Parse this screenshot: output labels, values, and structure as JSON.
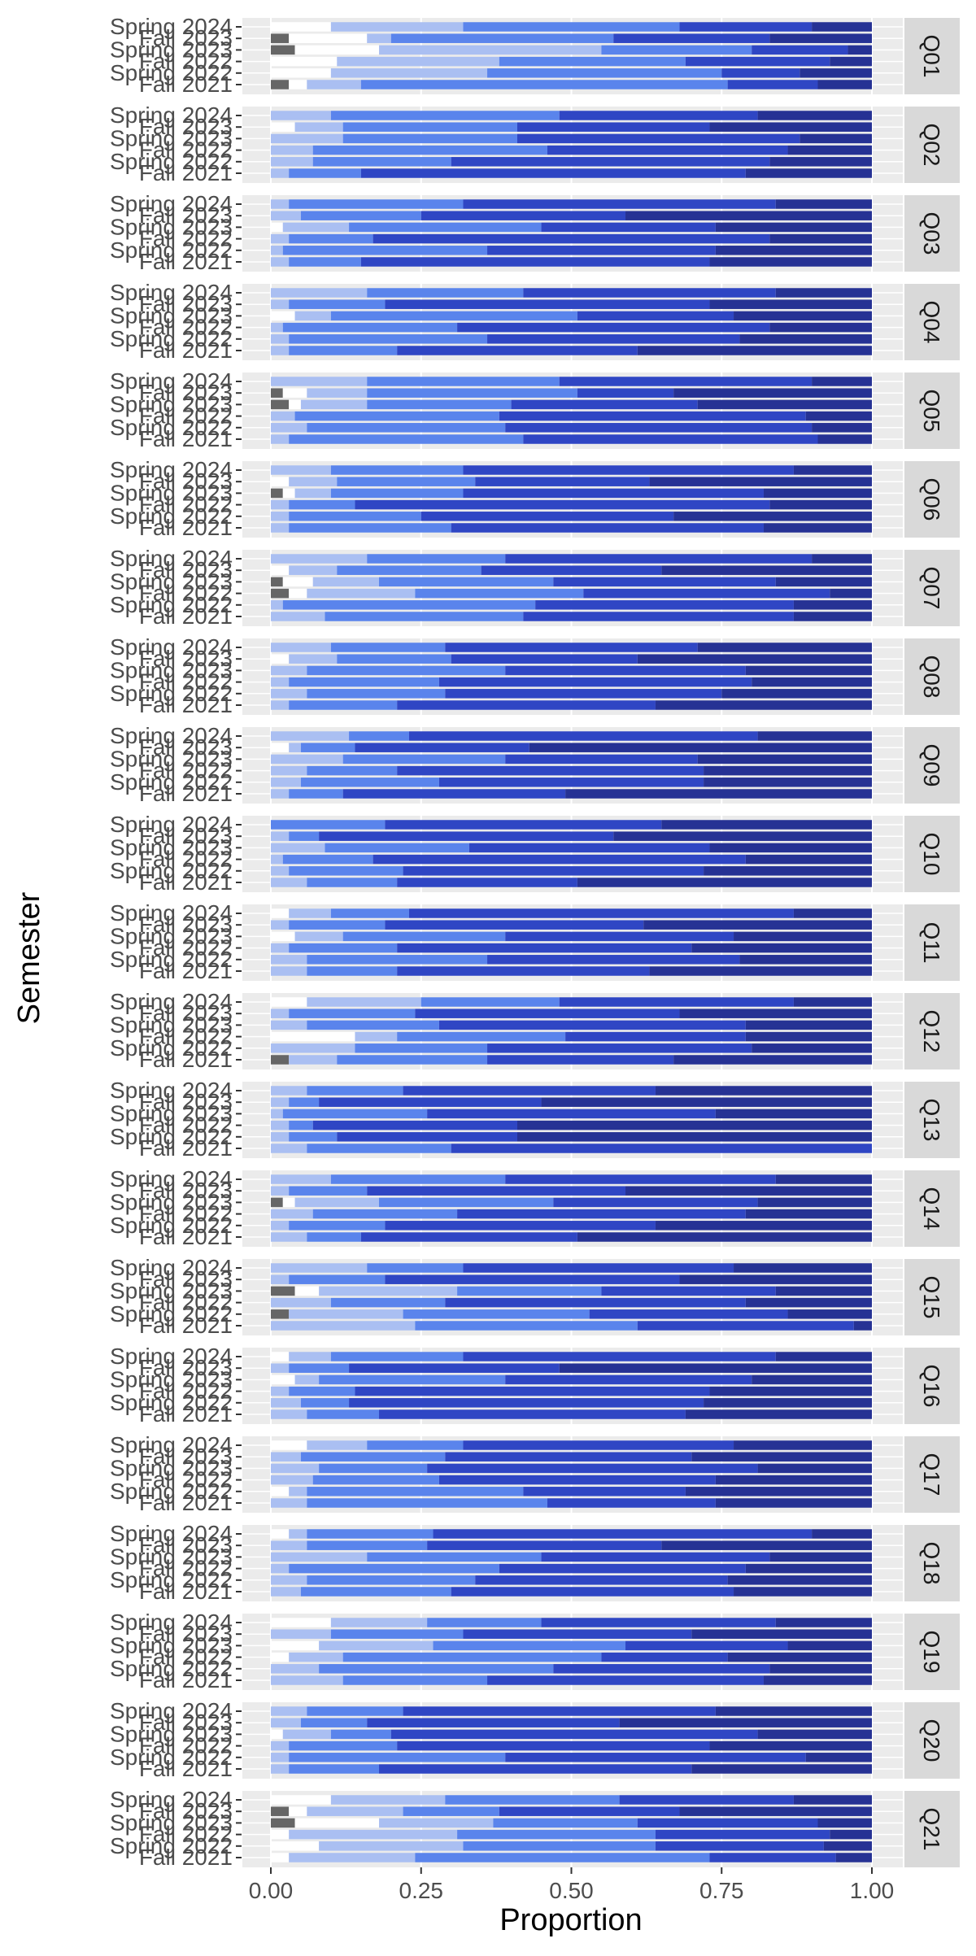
{
  "chart_data": {
    "type": "bar",
    "orientation": "horizontal",
    "stacked": true,
    "xlabel": "Proportion",
    "ylabel": "Semester",
    "xlim": [
      0,
      1
    ],
    "xticks": [
      "0.00",
      "0.25",
      "0.50",
      "0.75",
      "1.00"
    ],
    "grid": true,
    "legend": "none",
    "semesters": [
      "Spring 2024",
      "Fall 2023",
      "Spring 2023",
      "Fall 2022",
      "Spring 2022",
      "Fall 2021"
    ],
    "category_colors": [
      "#666666",
      "#ffffff",
      "#aabff2",
      "#5a84ec",
      "#2f46c4",
      "#263294",
      "#1c2560"
    ],
    "facets": [
      {
        "label": "Q01",
        "rows": [
          [
            0,
            0.1,
            0.22,
            0.36,
            0.22,
            0.1
          ],
          [
            0.03,
            0.13,
            0.04,
            0.37,
            0.26,
            0.17
          ],
          [
            0.04,
            0.14,
            0.37,
            0.25,
            0.16,
            0.04
          ],
          [
            0,
            0.11,
            0.27,
            0.31,
            0.24,
            0.07
          ],
          [
            0,
            0.1,
            0.26,
            0.39,
            0.13,
            0.12
          ],
          [
            0.03,
            0.03,
            0.09,
            0.61,
            0.15,
            0.09
          ]
        ]
      },
      {
        "label": "Q02",
        "rows": [
          [
            0,
            0,
            0.1,
            0.38,
            0.33,
            0.19
          ],
          [
            0,
            0.04,
            0.08,
            0.29,
            0.32,
            0.27
          ],
          [
            0,
            0,
            0.12,
            0.29,
            0.47,
            0.12
          ],
          [
            0,
            0,
            0.07,
            0.39,
            0.4,
            0.14
          ],
          [
            0,
            0,
            0.07,
            0.23,
            0.53,
            0.17
          ],
          [
            0,
            0,
            0.03,
            0.12,
            0.64,
            0.21
          ]
        ]
      },
      {
        "label": "Q03",
        "rows": [
          [
            0,
            0,
            0.03,
            0.29,
            0.52,
            0.16
          ],
          [
            0,
            0,
            0.05,
            0.2,
            0.34,
            0.41
          ],
          [
            0,
            0.02,
            0.11,
            0.32,
            0.29,
            0.26
          ],
          [
            0,
            0,
            0.03,
            0.14,
            0.66,
            0.17
          ],
          [
            0,
            0,
            0.02,
            0.34,
            0.38,
            0.26
          ],
          [
            0,
            0,
            0.03,
            0.12,
            0.58,
            0.27
          ]
        ]
      },
      {
        "label": "Q04",
        "rows": [
          [
            0,
            0,
            0.16,
            0.26,
            0.42,
            0.16
          ],
          [
            0,
            0,
            0.03,
            0.16,
            0.54,
            0.27
          ],
          [
            0,
            0.04,
            0.06,
            0.41,
            0.26,
            0.23
          ],
          [
            0,
            0,
            0.02,
            0.29,
            0.52,
            0.17
          ],
          [
            0,
            0,
            0.03,
            0.33,
            0.42,
            0.22
          ],
          [
            0,
            0,
            0.03,
            0.18,
            0.4,
            0.39
          ]
        ]
      },
      {
        "label": "Q05",
        "rows": [
          [
            0,
            0,
            0.16,
            0.32,
            0.42,
            0.1
          ],
          [
            0.02,
            0.04,
            0.1,
            0.35,
            0.16,
            0.33
          ],
          [
            0.03,
            0.02,
            0.11,
            0.24,
            0.31,
            0.29
          ],
          [
            0,
            0,
            0.04,
            0.34,
            0.51,
            0.11
          ],
          [
            0,
            0,
            0.06,
            0.33,
            0.51,
            0.1
          ],
          [
            0,
            0,
            0.03,
            0.39,
            0.49,
            0.09
          ]
        ]
      },
      {
        "label": "Q06",
        "rows": [
          [
            0,
            0,
            0.1,
            0.22,
            0.55,
            0.13
          ],
          [
            0,
            0.03,
            0.08,
            0.23,
            0.29,
            0.37
          ],
          [
            0.02,
            0.02,
            0.06,
            0.22,
            0.5,
            0.18
          ],
          [
            0,
            0,
            0.03,
            0.11,
            0.69,
            0.17
          ],
          [
            0,
            0,
            0.03,
            0.22,
            0.42,
            0.33
          ],
          [
            0,
            0,
            0.03,
            0.27,
            0.52,
            0.18
          ]
        ]
      },
      {
        "label": "Q07",
        "rows": [
          [
            0,
            0,
            0.16,
            0.23,
            0.51,
            0.1
          ],
          [
            0,
            0.03,
            0.08,
            0.24,
            0.3,
            0.35
          ],
          [
            0.02,
            0.05,
            0.11,
            0.29,
            0.37,
            0.16
          ],
          [
            0.03,
            0.03,
            0.18,
            0.28,
            0.41,
            0.07
          ],
          [
            0,
            0,
            0.02,
            0.42,
            0.43,
            0.13
          ],
          [
            0,
            0,
            0.09,
            0.33,
            0.45,
            0.13
          ]
        ]
      },
      {
        "label": "Q08",
        "rows": [
          [
            0,
            0,
            0.1,
            0.19,
            0.42,
            0.29
          ],
          [
            0,
            0.03,
            0.08,
            0.19,
            0.31,
            0.39
          ],
          [
            0,
            0,
            0.06,
            0.33,
            0.4,
            0.21
          ],
          [
            0,
            0,
            0.03,
            0.25,
            0.52,
            0.2
          ],
          [
            0,
            0,
            0.06,
            0.23,
            0.46,
            0.25
          ],
          [
            0,
            0,
            0.03,
            0.18,
            0.43,
            0.36
          ]
        ]
      },
      {
        "label": "Q09",
        "rows": [
          [
            0,
            0,
            0.13,
            0.1,
            0.58,
            0.19
          ],
          [
            0,
            0.03,
            0.02,
            0.09,
            0.29,
            0.57
          ],
          [
            0,
            0,
            0.12,
            0.27,
            0.32,
            0.29
          ],
          [
            0,
            0,
            0.06,
            0.15,
            0.51,
            0.28
          ],
          [
            0,
            0,
            0.05,
            0.23,
            0.44,
            0.28
          ],
          [
            0,
            0,
            0.03,
            0.09,
            0.37,
            0.51
          ]
        ]
      },
      {
        "label": "Q10",
        "rows": [
          [
            0,
            0,
            0,
            0.19,
            0.46,
            0.35
          ],
          [
            0,
            0,
            0.03,
            0.05,
            0.49,
            0.43
          ],
          [
            0,
            0,
            0.09,
            0.24,
            0.4,
            0.27
          ],
          [
            0,
            0,
            0.02,
            0.15,
            0.62,
            0.21
          ],
          [
            0,
            0,
            0.03,
            0.19,
            0.5,
            0.28
          ],
          [
            0,
            0,
            0.06,
            0.15,
            0.3,
            0.49
          ]
        ]
      },
      {
        "label": "Q11",
        "rows": [
          [
            0,
            0.03,
            0.07,
            0.13,
            0.64,
            0.13
          ],
          [
            0,
            0,
            0.03,
            0.16,
            0.43,
            0.38
          ],
          [
            0,
            0.04,
            0.08,
            0.27,
            0.38,
            0.23
          ],
          [
            0,
            0,
            0.03,
            0.18,
            0.49,
            0.3
          ],
          [
            0,
            0,
            0.06,
            0.3,
            0.42,
            0.22
          ],
          [
            0,
            0,
            0.06,
            0.15,
            0.42,
            0.37
          ]
        ]
      },
      {
        "label": "Q12",
        "rows": [
          [
            0,
            0.06,
            0.19,
            0.23,
            0.39,
            0.13
          ],
          [
            0,
            0,
            0.03,
            0.21,
            0.44,
            0.32
          ],
          [
            0,
            0,
            0.06,
            0.22,
            0.51,
            0.21
          ],
          [
            0,
            0.14,
            0.07,
            0.28,
            0.3,
            0.21
          ],
          [
            0,
            0,
            0.14,
            0.22,
            0.44,
            0.2
          ],
          [
            0.03,
            0,
            0.08,
            0.25,
            0.31,
            0.33
          ]
        ]
      },
      {
        "label": "Q13",
        "rows": [
          [
            0,
            0,
            0.06,
            0.16,
            0.42,
            0.36
          ],
          [
            0,
            0,
            0.03,
            0.05,
            0.37,
            0.55
          ],
          [
            0,
            0,
            0.02,
            0.24,
            0.48,
            0.26
          ],
          [
            0,
            0,
            0.03,
            0.04,
            0.34,
            0.59
          ],
          [
            0,
            0,
            0.03,
            0.08,
            0.3,
            0.59
          ],
          [
            0,
            0,
            0.06,
            0.24,
            0.7,
            0
          ]
        ]
      },
      {
        "label": "Q14",
        "rows": [
          [
            0,
            0,
            0.1,
            0.29,
            0.45,
            0.16
          ],
          [
            0,
            0,
            0.03,
            0.13,
            0.43,
            0.41
          ],
          [
            0.02,
            0.02,
            0.14,
            0.29,
            0.34,
            0.19
          ],
          [
            0,
            0,
            0.07,
            0.24,
            0.48,
            0.21
          ],
          [
            0,
            0,
            0.03,
            0.16,
            0.45,
            0.36
          ],
          [
            0,
            0,
            0.06,
            0.09,
            0.36,
            0.49
          ]
        ]
      },
      {
        "label": "Q15",
        "rows": [
          [
            0,
            0,
            0.16,
            0.16,
            0.45,
            0.23
          ],
          [
            0,
            0,
            0.03,
            0.16,
            0.49,
            0.32
          ],
          [
            0.04,
            0.04,
            0.23,
            0.24,
            0.29,
            0.16
          ],
          [
            0,
            0,
            0.1,
            0.19,
            0.5,
            0.21
          ],
          [
            0.03,
            0,
            0.19,
            0.31,
            0.33,
            0.14
          ],
          [
            0,
            0,
            0.24,
            0.37,
            0.36,
            0.03
          ]
        ]
      },
      {
        "label": "Q16",
        "rows": [
          [
            0,
            0.03,
            0.07,
            0.22,
            0.52,
            0.16
          ],
          [
            0,
            0,
            0.03,
            0.1,
            0.35,
            0.52
          ],
          [
            0,
            0.04,
            0.04,
            0.31,
            0.41,
            0.2
          ],
          [
            0,
            0,
            0.03,
            0.11,
            0.59,
            0.27
          ],
          [
            0,
            0,
            0.05,
            0.08,
            0.59,
            0.28
          ],
          [
            0,
            0,
            0.06,
            0.12,
            0.51,
            0.31
          ]
        ]
      },
      {
        "label": "Q17",
        "rows": [
          [
            0,
            0.06,
            0.1,
            0.16,
            0.45,
            0.23
          ],
          [
            0,
            0,
            0.05,
            0.24,
            0.41,
            0.3
          ],
          [
            0,
            0,
            0.08,
            0.18,
            0.55,
            0.19
          ],
          [
            0,
            0,
            0.07,
            0.21,
            0.46,
            0.26
          ],
          [
            0,
            0.03,
            0.03,
            0.36,
            0.27,
            0.31
          ],
          [
            0,
            0,
            0.06,
            0.4,
            0.28,
            0.26
          ]
        ]
      },
      {
        "label": "Q18",
        "rows": [
          [
            0,
            0.03,
            0.03,
            0.21,
            0.63,
            0.1
          ],
          [
            0,
            0,
            0.06,
            0.2,
            0.39,
            0.35
          ],
          [
            0,
            0,
            0.16,
            0.29,
            0.38,
            0.17
          ],
          [
            0,
            0,
            0.03,
            0.35,
            0.41,
            0.21
          ],
          [
            0,
            0,
            0.06,
            0.28,
            0.42,
            0.24
          ],
          [
            0,
            0,
            0.05,
            0.25,
            0.47,
            0.23
          ]
        ]
      },
      {
        "label": "Q19",
        "rows": [
          [
            0,
            0.1,
            0.16,
            0.19,
            0.39,
            0.16
          ],
          [
            0,
            0,
            0.1,
            0.22,
            0.38,
            0.3
          ],
          [
            0,
            0.08,
            0.19,
            0.32,
            0.27,
            0.14
          ],
          [
            0,
            0.03,
            0.09,
            0.43,
            0.21,
            0.24
          ],
          [
            0,
            0,
            0.08,
            0.39,
            0.36,
            0.17
          ],
          [
            0,
            0,
            0.12,
            0.24,
            0.46,
            0.18
          ]
        ]
      },
      {
        "label": "Q20",
        "rows": [
          [
            0,
            0,
            0.06,
            0.16,
            0.52,
            0.26
          ],
          [
            0,
            0,
            0.05,
            0.11,
            0.42,
            0.42
          ],
          [
            0,
            0.02,
            0.08,
            0.1,
            0.61,
            0.19
          ],
          [
            0,
            0,
            0.03,
            0.18,
            0.52,
            0.27
          ],
          [
            0,
            0,
            0.03,
            0.36,
            0.5,
            0.11
          ],
          [
            0,
            0,
            0.03,
            0.15,
            0.52,
            0.3
          ]
        ]
      },
      {
        "label": "Q21",
        "rows": [
          [
            0,
            0.1,
            0.19,
            0.29,
            0.29,
            0.13
          ],
          [
            0.03,
            0.03,
            0.16,
            0.16,
            0.3,
            0.32
          ],
          [
            0.04,
            0.14,
            0.19,
            0.24,
            0.3,
            0.09
          ],
          [
            0,
            0.03,
            0.28,
            0.33,
            0.29,
            0.07
          ],
          [
            0,
            0.08,
            0.24,
            0.32,
            0.28,
            0.08
          ],
          [
            0,
            0.03,
            0.21,
            0.49,
            0.21,
            0.06
          ]
        ]
      }
    ]
  }
}
